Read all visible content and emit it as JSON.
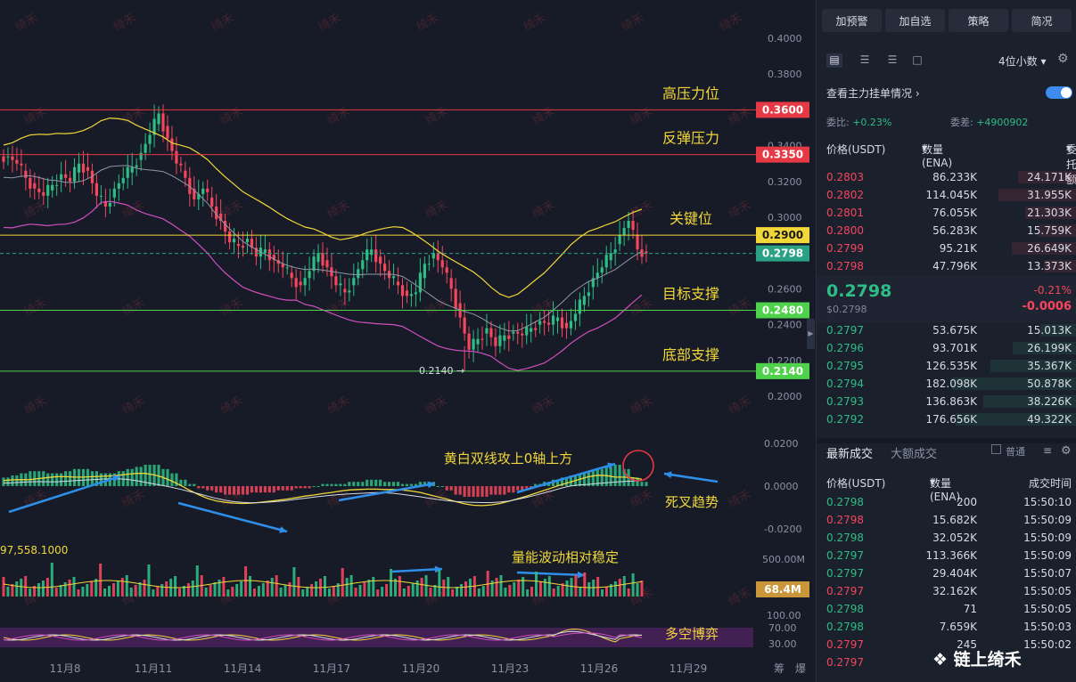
{
  "chart_data": {
    "type": "candlestick",
    "price_axis": {
      "ticks": [
        "0.4000",
        "0.3800",
        "0.3600",
        "0.3400",
        "0.3200",
        "0.3000",
        "0.2800",
        "0.2600",
        "0.2400",
        "0.2200",
        "0.2000"
      ],
      "min": 0.2,
      "max": 0.4
    },
    "x_ticks": [
      "11月8",
      "11月11",
      "11月14",
      "11月17",
      "11月20",
      "11月23",
      "11月26",
      "11月29"
    ],
    "levels": [
      {
        "value": 0.36,
        "label": "0.3600",
        "name": "高压力位",
        "color": "#e53945"
      },
      {
        "value": 0.335,
        "label": "0.3350",
        "name": "反弹压力",
        "color": "#e53945"
      },
      {
        "value": 0.29,
        "label": "0.2900",
        "name": "关键位",
        "color": "#f2d73a"
      },
      {
        "value": 0.248,
        "label": "0.2480",
        "name": "目标支撑",
        "color": "#4fd14b"
      },
      {
        "value": 0.214,
        "label": "0.2140",
        "name": "底部支撑",
        "color": "#4fd14b"
      }
    ],
    "current_price": {
      "value": 0.2798,
      "label": "0.2798",
      "color": "#2aa185"
    },
    "low_marker": "0.2140",
    "close_series": [
      0.334,
      0.33,
      0.322,
      0.316,
      0.312,
      0.318,
      0.324,
      0.32,
      0.33,
      0.326,
      0.312,
      0.306,
      0.316,
      0.322,
      0.328,
      0.336,
      0.346,
      0.358,
      0.344,
      0.33,
      0.322,
      0.31,
      0.316,
      0.306,
      0.298,
      0.286,
      0.284,
      0.288,
      0.278,
      0.282,
      0.276,
      0.272,
      0.266,
      0.262,
      0.27,
      0.28,
      0.272,
      0.262,
      0.258,
      0.266,
      0.276,
      0.282,
      0.274,
      0.266,
      0.262,
      0.256,
      0.258,
      0.274,
      0.28,
      0.272,
      0.26,
      0.244,
      0.226,
      0.232,
      0.238,
      0.228,
      0.234,
      0.236,
      0.234,
      0.238,
      0.242,
      0.24,
      0.244,
      0.238,
      0.246,
      0.256,
      0.266,
      0.272,
      0.28,
      0.29,
      0.298,
      0.282,
      0.2798
    ],
    "macd": {
      "axis_ticks": [
        "0.0200",
        "0.0000",
        "-0.0200"
      ],
      "min": -0.025,
      "max": 0.025,
      "hist": [
        0.004,
        0.005,
        0.006,
        0.007,
        0.007,
        0.006,
        0.006,
        0.007,
        0.008,
        0.008,
        0.007,
        0.006,
        0.006,
        0.007,
        0.008,
        0.009,
        0.01,
        0.01,
        0.008,
        0.006,
        0.003,
        0.001,
        -0.001,
        -0.002,
        -0.003,
        -0.004,
        -0.004,
        -0.004,
        -0.003,
        -0.003,
        -0.003,
        -0.002,
        -0.002,
        -0.001,
        -0.001,
        0.0,
        0.001,
        0.001,
        0.001,
        0.002,
        0.002,
        0.003,
        0.003,
        0.002,
        0.002,
        0.001,
        0.001,
        0.002,
        0.002,
        0.0,
        -0.002,
        -0.004,
        -0.005,
        -0.005,
        -0.005,
        -0.004,
        -0.004,
        -0.003,
        -0.002,
        -0.001,
        0.001,
        0.002,
        0.003,
        0.004,
        0.005,
        0.006,
        0.007,
        0.008,
        0.009,
        0.01,
        0.008,
        0.004,
        0.002
      ],
      "annotation_up": "黄白双线攻上0轴上方",
      "annotation_cross": "死叉趋势"
    },
    "volume": {
      "axis_top": "500.00M",
      "axis_left": "97,558.1000",
      "current_label": "68.4M",
      "annotation": "量能波动相对稳定"
    },
    "oscillator": {
      "ticks": [
        "100.00",
        "70.00",
        "30.00"
      ],
      "annotation": "多空博弈"
    },
    "footer_labels": [
      "筹",
      "爆"
    ]
  },
  "sidebar": {
    "top_buttons": [
      "加预警",
      "加自选",
      "策略",
      "简况"
    ],
    "decimals": "4位小数",
    "mainforce_label": "查看主力挂单情况",
    "ratio_label": "委比:",
    "ratio_value": "+0.23%",
    "diff_label": "委差:",
    "diff_value": "+4900902",
    "book_headers": {
      "price": "价格(USDT)",
      "qty": "数量 (ENA)",
      "amount": "委托额"
    },
    "asks": [
      {
        "price": "0.2803",
        "qty": "86.233K",
        "amount": "24.171K"
      },
      {
        "price": "0.2802",
        "qty": "114.045K",
        "amount": "31.955K"
      },
      {
        "price": "0.2801",
        "qty": "76.055K",
        "amount": "21.303K"
      },
      {
        "price": "0.2800",
        "qty": "56.283K",
        "amount": "15.759K"
      },
      {
        "price": "0.2799",
        "qty": "95.21K",
        "amount": "26.649K"
      },
      {
        "price": "0.2798",
        "qty": "47.796K",
        "amount": "13.373K"
      }
    ],
    "mid": {
      "price": "0.2798",
      "sub": "$0.2798",
      "pct": "-0.21%",
      "chg": "-0.0006"
    },
    "bids": [
      {
        "price": "0.2797",
        "qty": "53.675K",
        "amount": "15.013K"
      },
      {
        "price": "0.2796",
        "qty": "93.701K",
        "amount": "26.199K"
      },
      {
        "price": "0.2795",
        "qty": "126.535K",
        "amount": "35.367K"
      },
      {
        "price": "0.2794",
        "qty": "182.098K",
        "amount": "50.878K"
      },
      {
        "price": "0.2793",
        "qty": "136.863K",
        "amount": "38.226K"
      },
      {
        "price": "0.2792",
        "qty": "176.656K",
        "amount": "49.322K"
      }
    ],
    "trade_tabs": [
      "最新成交",
      "大额成交"
    ],
    "trade_filter": "普通",
    "trade_headers": {
      "price": "价格(USDT)",
      "qty": "数量(ENA)",
      "time": "成交时间"
    },
    "trades": [
      {
        "price": "0.2798",
        "qty": "200",
        "time": "15:50:10",
        "side": "green"
      },
      {
        "price": "0.2798",
        "qty": "15.682K",
        "time": "15:50:09",
        "side": "red"
      },
      {
        "price": "0.2798",
        "qty": "32.052K",
        "time": "15:50:09",
        "side": "green"
      },
      {
        "price": "0.2797",
        "qty": "113.366K",
        "time": "15:50:09",
        "side": "green"
      },
      {
        "price": "0.2797",
        "qty": "29.404K",
        "time": "15:50:07",
        "side": "green"
      },
      {
        "price": "0.2797",
        "qty": "32.162K",
        "time": "15:50:05",
        "side": "red"
      },
      {
        "price": "0.2798",
        "qty": "71",
        "time": "15:50:05",
        "side": "green"
      },
      {
        "price": "0.2798",
        "qty": "7.659K",
        "time": "15:50:03",
        "side": "green"
      },
      {
        "price": "0.2797",
        "qty": "245",
        "time": "15:50:02",
        "side": "red"
      },
      {
        "price": "0.2797",
        "qty": "",
        "time": "",
        "side": "red"
      }
    ],
    "badge": "链上绮禾"
  },
  "watermark": "绮禾",
  "colors": {
    "up": "#2ebd85",
    "down": "#f6465d",
    "accent": "#3e8cf0"
  }
}
